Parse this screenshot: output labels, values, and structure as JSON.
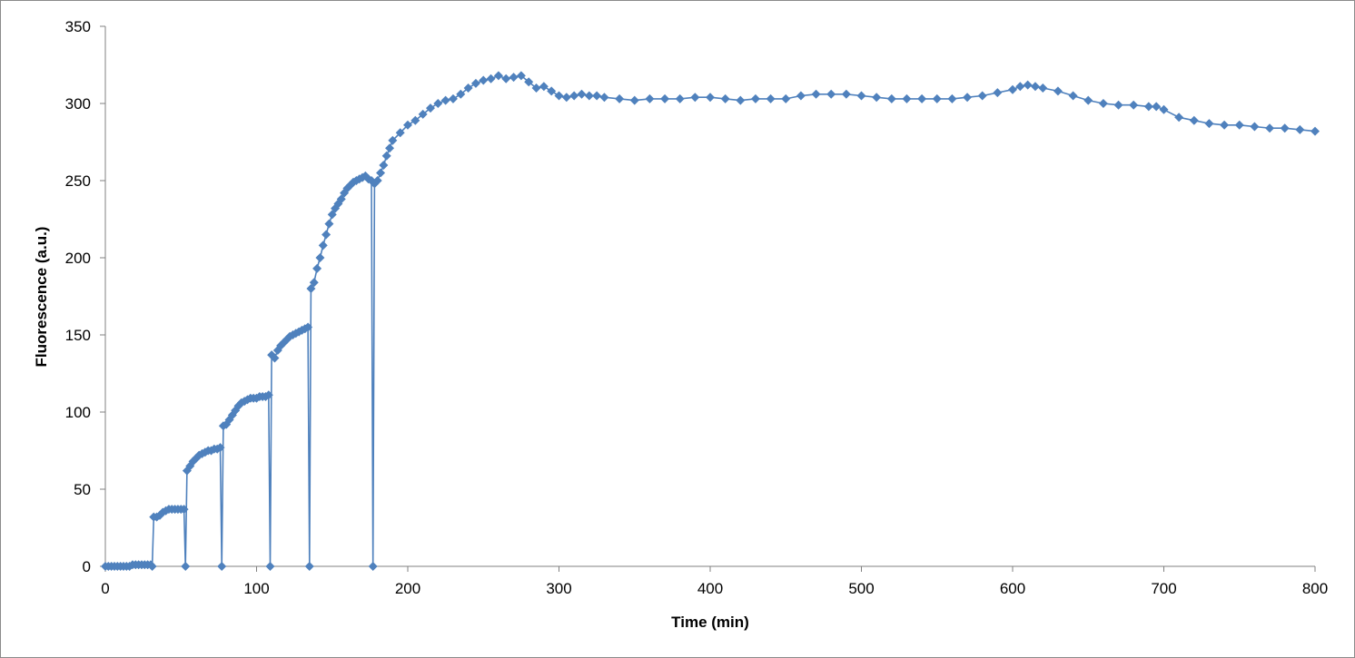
{
  "chart_data": {
    "type": "scatter",
    "title": "",
    "xlabel": "Time (min)",
    "ylabel": "Fluorescence (a.u.)",
    "xlim": [
      0,
      800
    ],
    "ylim": [
      0,
      350
    ],
    "xticks": [
      0,
      100,
      200,
      300,
      400,
      500,
      600,
      700,
      800
    ],
    "yticks": [
      0,
      50,
      100,
      150,
      200,
      250,
      300,
      350
    ],
    "grid": false,
    "legend": "none",
    "marker": "diamond",
    "connected": true,
    "color": "#4F81BD",
    "series": [
      {
        "x": [
          0,
          2,
          4,
          6,
          8,
          10,
          12,
          14,
          16,
          18,
          20,
          22,
          24,
          26,
          28,
          30,
          31,
          32,
          34,
          36,
          38,
          40,
          42,
          44,
          46,
          48,
          50,
          52,
          53,
          54,
          56,
          58,
          60,
          62,
          64,
          66,
          68,
          70,
          72,
          74,
          76,
          77,
          78,
          80,
          82,
          84,
          86,
          88,
          90,
          92,
          94,
          96,
          98,
          100,
          102,
          104,
          106,
          108,
          109,
          110,
          112,
          114,
          116,
          118,
          120,
          122,
          124,
          126,
          128,
          130,
          132,
          134,
          135,
          136,
          138,
          140,
          142,
          144,
          146,
          148,
          150,
          152,
          154,
          156,
          158,
          160,
          162,
          164,
          166,
          168,
          170,
          172,
          174,
          176,
          177,
          178,
          180,
          182,
          184,
          186,
          188,
          190,
          195,
          200,
          205,
          210,
          215,
          220,
          225,
          230,
          235,
          240,
          245,
          250,
          255,
          260,
          265,
          270,
          275,
          280,
          285,
          290,
          295,
          300,
          305,
          310,
          315,
          320,
          325,
          330,
          340,
          350,
          360,
          370,
          380,
          390,
          400,
          410,
          420,
          430,
          440,
          450,
          460,
          470,
          480,
          490,
          500,
          510,
          520,
          530,
          540,
          550,
          560,
          570,
          580,
          590,
          600,
          605,
          610,
          615,
          620,
          630,
          640,
          650,
          660,
          670,
          680,
          690,
          695,
          700,
          710,
          720,
          730,
          740,
          750,
          760,
          770,
          780,
          790,
          800
        ],
        "y": [
          0,
          0,
          0,
          0,
          0,
          0,
          0,
          0,
          0,
          1,
          1,
          1,
          1,
          1,
          1,
          1,
          0,
          32,
          32,
          33,
          35,
          36,
          37,
          37,
          37,
          37,
          37,
          37,
          0,
          62,
          65,
          68,
          70,
          72,
          73,
          74,
          75,
          75,
          76,
          76,
          77,
          0,
          91,
          92,
          95,
          98,
          101,
          104,
          106,
          107,
          108,
          109,
          109,
          109,
          110,
          110,
          110,
          111,
          0,
          137,
          135,
          140,
          143,
          145,
          147,
          149,
          150,
          151,
          152,
          153,
          154,
          155,
          0,
          180,
          184,
          193,
          200,
          208,
          215,
          222,
          228,
          232,
          235,
          238,
          242,
          245,
          247,
          249,
          250,
          251,
          252,
          253,
          251,
          250,
          0,
          248,
          250,
          255,
          260,
          266,
          271,
          276,
          281,
          286,
          289,
          293,
          297,
          300,
          302,
          303,
          306,
          310,
          313,
          315,
          316,
          318,
          316,
          317,
          318,
          314,
          310,
          311,
          308,
          305,
          304,
          305,
          306,
          305,
          305,
          304,
          303,
          302,
          303,
          303,
          303,
          304,
          304,
          303,
          302,
          303,
          303,
          303,
          305,
          306,
          306,
          306,
          305,
          304,
          303,
          303,
          303,
          303,
          303,
          304,
          305,
          307,
          309,
          311,
          312,
          311,
          310,
          308,
          305,
          302,
          300,
          299,
          299,
          298,
          298,
          296,
          291,
          289,
          287,
          286,
          286,
          285,
          284,
          284,
          283,
          282
        ]
      }
    ]
  }
}
